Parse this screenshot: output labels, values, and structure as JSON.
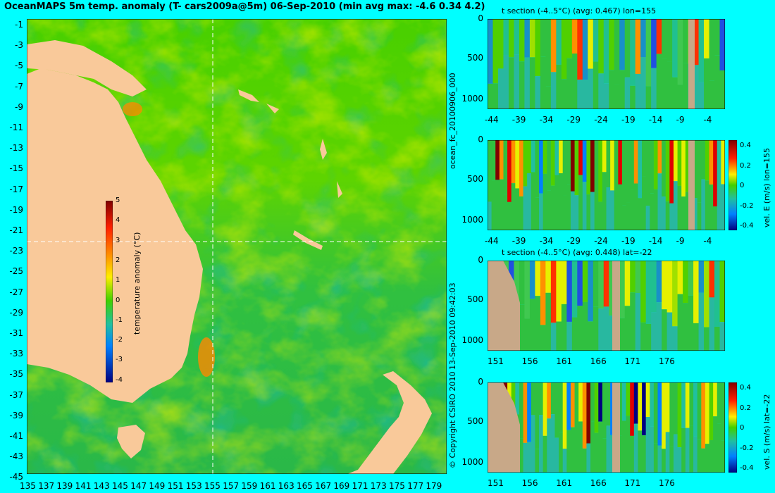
{
  "title": "OceanMAPS 5m temp. anomaly (T- cars2009a@5m) 06-Sep-2010 (min avg max: -4.6 0.34 4.2)",
  "map": {
    "lat_labels": [
      "-1",
      "-3",
      "-5",
      "-7",
      "-9",
      "-11",
      "-13",
      "-15",
      "-17",
      "-19",
      "-21",
      "-23",
      "-25",
      "-27",
      "-29",
      "-31",
      "-33",
      "-35",
      "-37",
      "-39",
      "-41",
      "-43",
      "-45"
    ],
    "lon_labels": [
      "135",
      "137",
      "139",
      "141",
      "143",
      "145",
      "147",
      "149",
      "151",
      "153",
      "155",
      "157",
      "159",
      "161",
      "163",
      "165",
      "167",
      "169",
      "171",
      "173",
      "175",
      "177",
      "179"
    ],
    "colorbar": {
      "label": "temperature anomaly (°C)",
      "ticks": [
        "5",
        "4",
        "3",
        "2",
        "1",
        "0",
        "-1",
        "-2",
        "-3",
        "-4"
      ]
    },
    "crosshair": {
      "lon": 155,
      "lat": -22
    }
  },
  "sections": [
    {
      "id": "t-lon",
      "title": "t section (-4..5°C) (avg: 0.467) lon=155",
      "y_ticks": [
        "0",
        "500",
        "1000"
      ],
      "x_ticks": [
        "-44",
        "-39",
        "-34",
        "-29",
        "-24",
        "-19",
        "-14",
        "-9",
        "-4"
      ],
      "colorbar": false
    },
    {
      "id": "v-lon",
      "title": "",
      "y_ticks": [
        "0",
        "500",
        "1000"
      ],
      "x_ticks": [
        "-44",
        "-39",
        "-34",
        "-29",
        "-24",
        "-19",
        "-14",
        "-9",
        "-4"
      ],
      "colorbar": true,
      "cbar_label": "vel. E (m/s) lon=155",
      "cbar_ticks": [
        "0.4",
        "0.2",
        "0",
        "-0.2",
        "-0.4"
      ]
    },
    {
      "id": "t-lat",
      "title": "t section (-4..5°C) (avg: 0.448) lat=-22",
      "y_ticks": [
        "0",
        "500",
        "1000"
      ],
      "x_ticks": [
        "151",
        "156",
        "161",
        "166",
        "171",
        "176"
      ],
      "colorbar": false
    },
    {
      "id": "v-lat",
      "title": "",
      "y_ticks": [
        "0",
        "500",
        "1000"
      ],
      "x_ticks": [
        "151",
        "156",
        "161",
        "166",
        "171",
        "176"
      ],
      "colorbar": true,
      "cbar_label": "vel. S (m/s) lat=-22",
      "cbar_ticks": [
        "0.4",
        "0.2",
        "0",
        "-0.2",
        "-0.4"
      ]
    }
  ],
  "side_labels": {
    "file": "ocean_fc_20100906_000",
    "timestamp": "13-Sep-2010 09:42:03",
    "copyright": "© Copyright CSIRO 2010"
  }
}
